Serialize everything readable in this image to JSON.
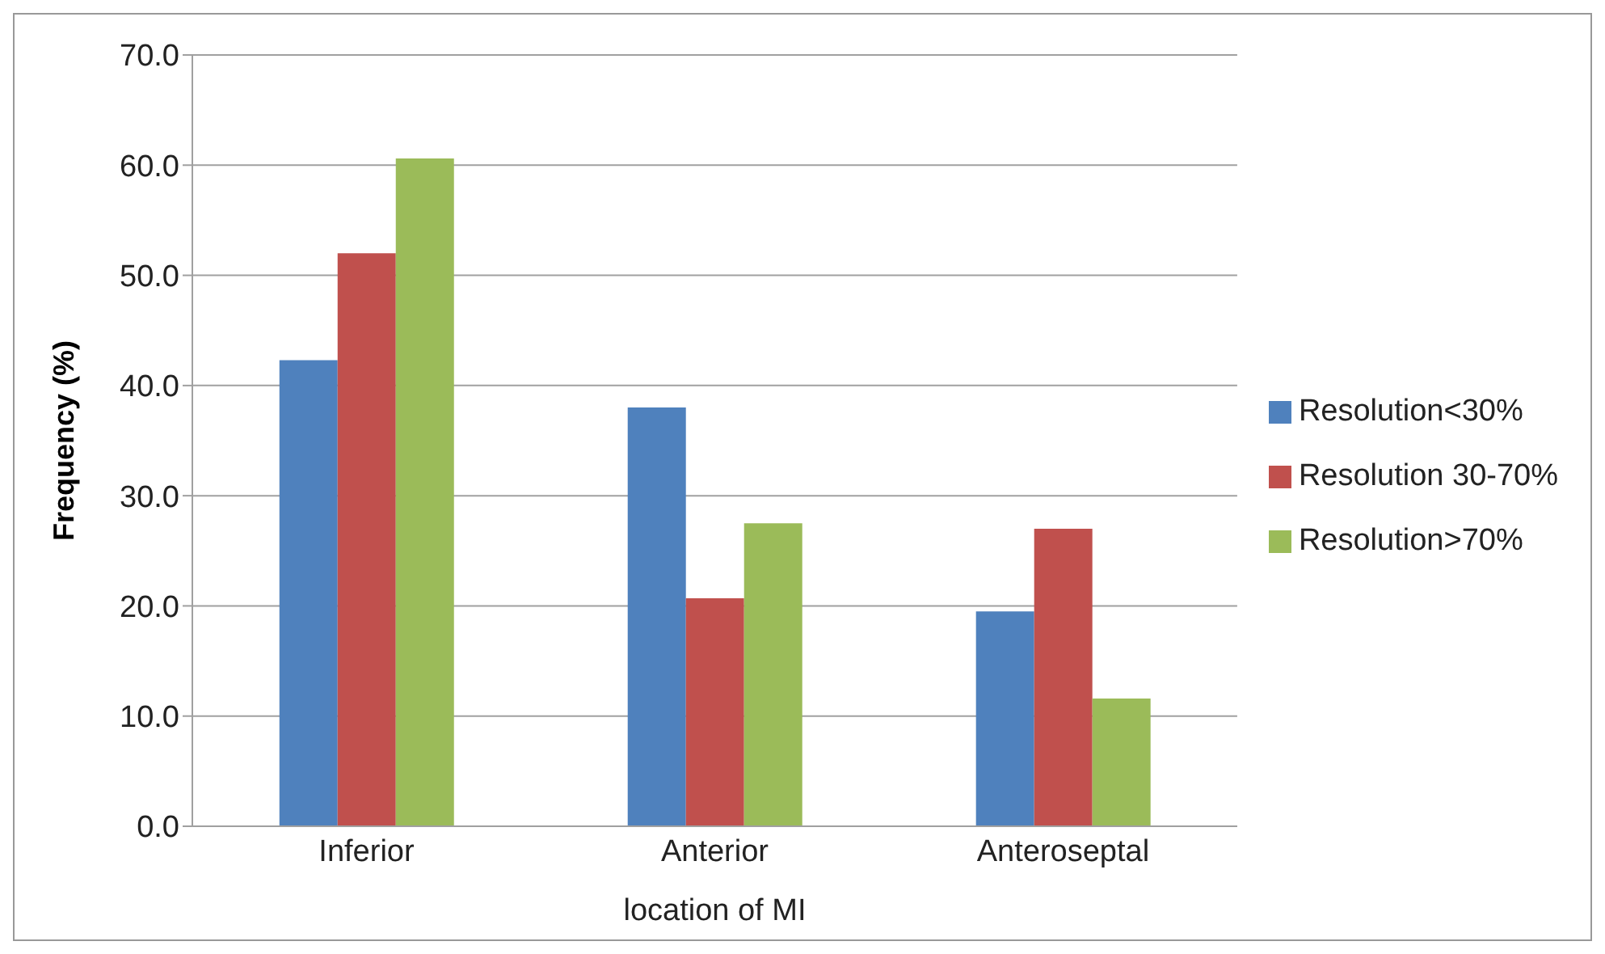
{
  "chart_data": {
    "type": "bar",
    "ylabel": "Frequency (%)",
    "xlabel": "location of MI",
    "categories": [
      "Inferior",
      "Anterior",
      "Anteroseptal"
    ],
    "series": [
      {
        "name": "Resolution<30%",
        "color": "#4f81bd",
        "values": [
          42.3,
          38.0,
          19.5
        ]
      },
      {
        "name": "Resolution 30-70%",
        "color": "#c0504d",
        "values": [
          52.0,
          20.7,
          27.0
        ]
      },
      {
        "name": "Resolution>70%",
        "color": "#9bbb59",
        "values": [
          60.6,
          27.5,
          11.6
        ]
      }
    ],
    "ylim": [
      0,
      70
    ],
    "yticks": [
      {
        "value": 0,
        "label": "0.0"
      },
      {
        "value": 10,
        "label": "10.0"
      },
      {
        "value": 20,
        "label": "20.0"
      },
      {
        "value": 30,
        "label": "30.0"
      },
      {
        "value": 40,
        "label": "40.0"
      },
      {
        "value": 50,
        "label": "50.0"
      },
      {
        "value": 60,
        "label": "60.0"
      },
      {
        "value": 70,
        "label": "70.0"
      }
    ],
    "grid": "y",
    "legend": "right"
  }
}
